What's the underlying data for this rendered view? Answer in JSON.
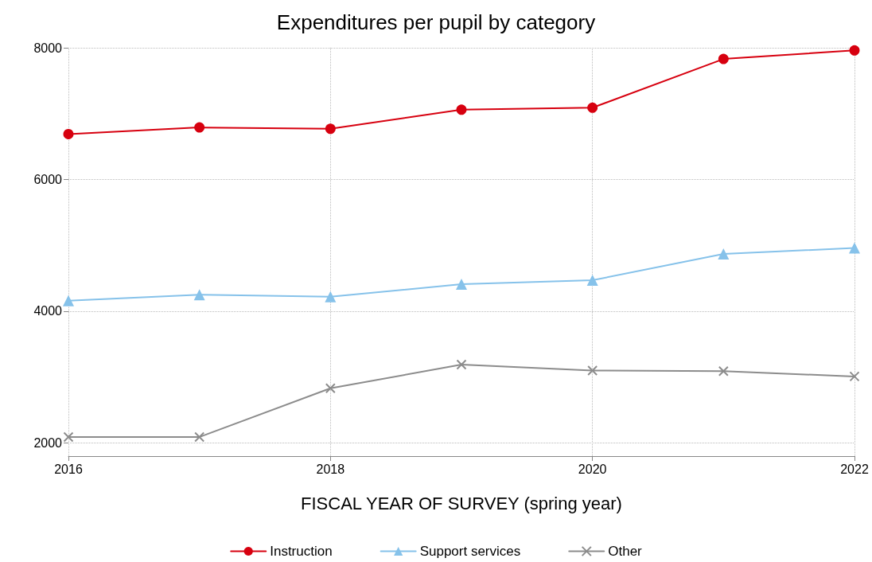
{
  "chart_data": {
    "type": "line",
    "title": "Expenditures per pupil by category",
    "xlabel": "FISCAL YEAR OF SURVEY (spring year)",
    "x": [
      2016,
      2017,
      2018,
      2019,
      2020,
      2021,
      2022
    ],
    "series": [
      {
        "name": "Instruction",
        "color": "#d7000f",
        "marker": "circle",
        "values": [
          6690,
          6790,
          6770,
          7060,
          7090,
          7830,
          7960
        ]
      },
      {
        "name": "Support services",
        "color": "#86c2ea",
        "marker": "triangle",
        "values": [
          4160,
          4250,
          4220,
          4410,
          4470,
          4870,
          4960
        ]
      },
      {
        "name": "Other",
        "color": "#8c8c8c",
        "marker": "cross",
        "values": [
          2090,
          2090,
          2830,
          3190,
          3100,
          3090,
          3010
        ]
      }
    ],
    "xlim": [
      2016,
      2022
    ],
    "xticks": [
      2016,
      2018,
      2020,
      2022
    ],
    "ylim": [
      1800,
      8000
    ],
    "yticks": [
      2000,
      4000,
      6000,
      8000
    ],
    "grid": true,
    "legend": "bottom",
    "line_style": "solid"
  }
}
